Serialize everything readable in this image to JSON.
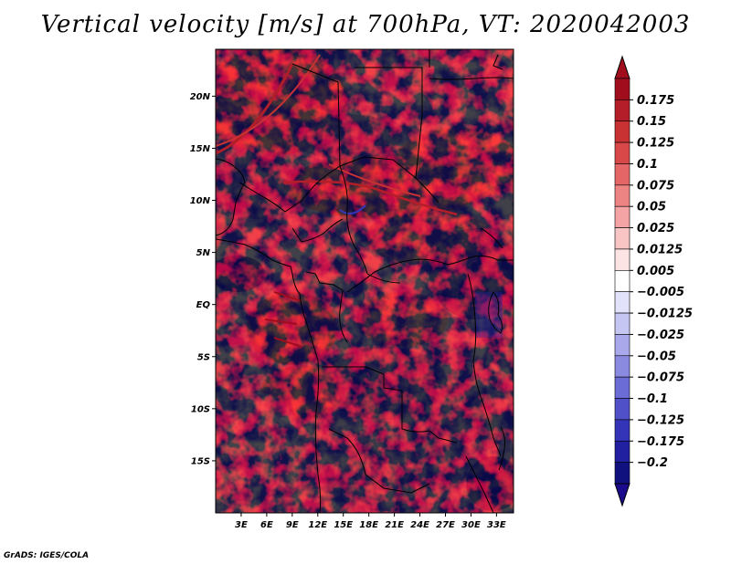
{
  "title": "Vertical velocity [m/s] at 700hPa, VT: 2020042003",
  "credit": "GrADS: IGES/COLA",
  "map": {
    "lat_labels": [
      "20N",
      "15N",
      "10N",
      "5N",
      "EQ",
      "5S",
      "10S",
      "15S"
    ],
    "lat_values": [
      20,
      15,
      10,
      5,
      0,
      -5,
      -10,
      -15
    ],
    "lon_labels": [
      "3E",
      "6E",
      "9E",
      "12E",
      "15E",
      "18E",
      "21E",
      "24E",
      "27E",
      "30E",
      "33E"
    ],
    "lon_values": [
      3,
      6,
      9,
      12,
      15,
      18,
      21,
      24,
      27,
      30,
      33
    ],
    "lon_range": [
      0,
      35
    ],
    "lat_range": [
      -20,
      24.5
    ]
  },
  "colorbar": {
    "labels": [
      "0.175",
      "0.15",
      "0.125",
      "0.1",
      "0.075",
      "0.05",
      "0.025",
      "0.0125",
      "0.005",
      "-0.005",
      "-0.0125",
      "-0.025",
      "-0.05",
      "-0.075",
      "-0.1",
      "-0.125",
      "-0.175",
      "-0.2"
    ],
    "colors": [
      "#a00e1e",
      "#b41e28",
      "#c83232",
      "#d84848",
      "#e46666",
      "#ec8484",
      "#f4a4a4",
      "#f8c4c4",
      "#fce4e4",
      "#ffffff",
      "#e2e2fa",
      "#c6c6f2",
      "#a8a8ea",
      "#8a8ae0",
      "#6c6cd6",
      "#5050c8",
      "#3434b8",
      "#2020a0",
      "#10107e"
    ],
    "top_color": "#a00e1e",
    "bottom_color": "#1a0a8c"
  }
}
